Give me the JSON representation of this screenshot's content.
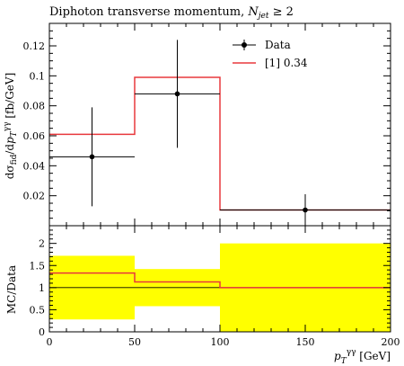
{
  "chart_data": {
    "type": "line",
    "title": "Diphoton transverse momentum, N_jet ≥ 2",
    "title_parts": {
      "main": "Diphoton transverse momentum, ",
      "var": "N",
      "sub": "jet",
      "rest": " ≥ 2"
    },
    "xlabel": "p_T^γγ [GeV]",
    "xlabel_parts": {
      "p": "p",
      "sub": "T",
      "sup": "γγ",
      "unit": " [GeV]"
    },
    "ylabel": "dσ_fid/dp_T^γγ [fb/GeV]",
    "ylabel_parts": {
      "a": "dσ",
      "asub": "fid",
      "b": "/d",
      "p": "p",
      "psub": "T",
      "psup": "γγ",
      "unit": " [fb/GeV]"
    },
    "xlim": [
      0,
      200
    ],
    "ylim": [
      0,
      0.135
    ],
    "x_ticks": [
      0,
      50,
      100,
      150,
      200
    ],
    "y_ticks": [
      0.02,
      0.04,
      0.06,
      0.08,
      0.1,
      0.12
    ],
    "y_tick_labels": [
      "0.02",
      "0.04",
      "0.06",
      "0.08",
      "0.1",
      "0.12"
    ],
    "legend_position": "top-right",
    "bins": [
      [
        0,
        50
      ],
      [
        50,
        100
      ],
      [
        100,
        200
      ]
    ],
    "series": [
      {
        "name": "Data",
        "style": "points",
        "color": "#000000",
        "x": [
          25,
          75,
          150
        ],
        "y": [
          0.046,
          0.088,
          0.0105
        ],
        "y_err_up": [
          0.079,
          0.124,
          0.021
        ],
        "y_err_down": [
          0.013,
          0.052,
          0.0
        ]
      },
      {
        "name": "[1] 0.34",
        "style": "histogram",
        "color": "#e8383d",
        "values": [
          0.061,
          0.099,
          0.0105
        ]
      }
    ],
    "ratio_panel": {
      "ylabel": "MC/Data",
      "ylim": [
        0,
        2.4
      ],
      "y_ticks": [
        0,
        0.5,
        1,
        1.5,
        2
      ],
      "y_tick_labels": [
        "0",
        "0.5",
        "1",
        "1.5",
        "2"
      ],
      "band_color": "#ffff00",
      "band_low": [
        0.28,
        0.58,
        0.0
      ],
      "band_high": [
        1.72,
        1.42,
        2.0
      ],
      "mc_ratio": [
        1.33,
        1.13,
        1.0
      ]
    }
  }
}
